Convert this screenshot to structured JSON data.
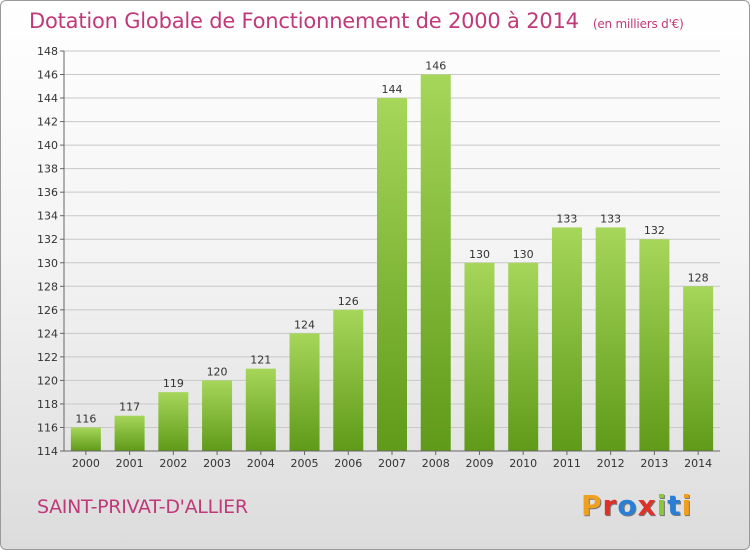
{
  "header": {
    "title": "Dotation Globale de Fonctionnement de 2000 à 2014",
    "unit": "(en milliers d'€)"
  },
  "footer": {
    "city": "SAINT-PRIVAT-D'ALLIER",
    "logo": "Proxiti",
    "logo_colors": [
      "#f0a020",
      "#e0302a",
      "#2a7fd4",
      "#e0302a",
      "#8cc63f",
      "#2a7fd4",
      "#f0a020"
    ]
  },
  "colors": {
    "bar_top": "#a6d65a",
    "bar_bottom": "#5f9a18",
    "title": "#c0397a",
    "grid": "#c8c8c8"
  },
  "chart_data": {
    "type": "bar",
    "title": "Dotation Globale de Fonctionnement de 2000 à 2014",
    "subtitle": "(en milliers d'€)",
    "categories": [
      "2000",
      "2001",
      "2002",
      "2003",
      "2004",
      "2005",
      "2006",
      "2007",
      "2008",
      "2009",
      "2010",
      "2011",
      "2012",
      "2013",
      "2014"
    ],
    "values": [
      116,
      117,
      119,
      120,
      121,
      124,
      126,
      144,
      146,
      130,
      130,
      133,
      133,
      132,
      128
    ],
    "ylim": [
      114,
      148
    ],
    "ytick_step": 2,
    "grid": true
  }
}
